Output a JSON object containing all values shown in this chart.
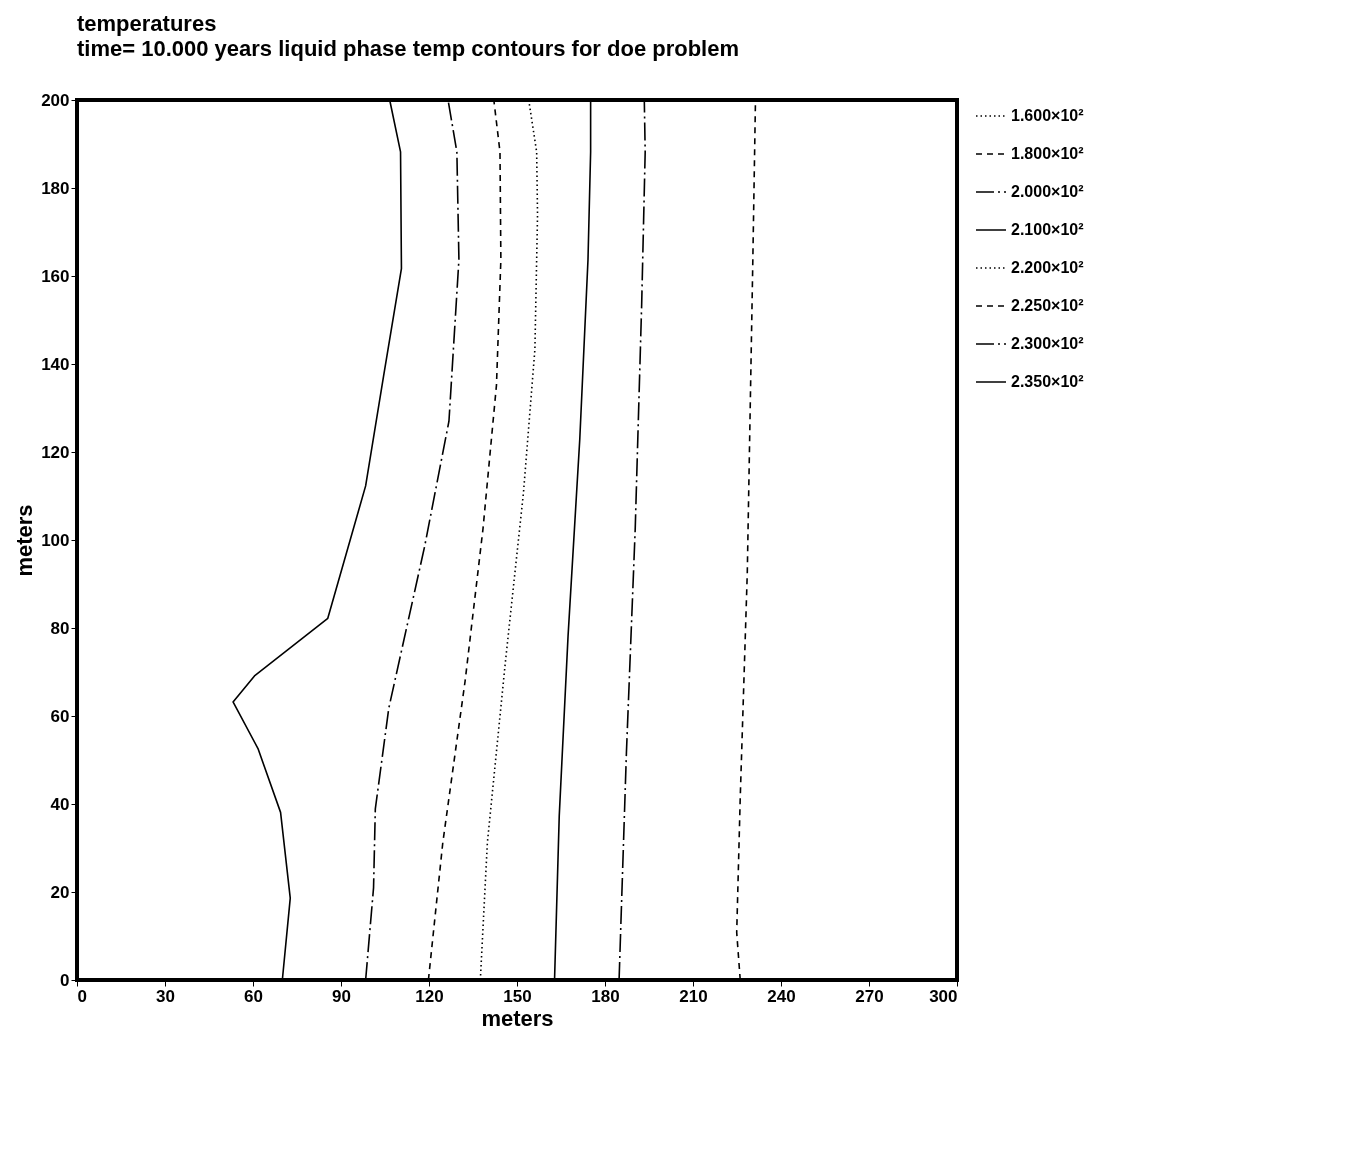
{
  "chart_data": {
    "type": "line",
    "title": "temperatures",
    "subtitle": "time= 10.000 years  liquid phase  temp contours for doe problem",
    "xlabel": "meters",
    "ylabel": "meters",
    "xlim": [
      0,
      300
    ],
    "ylim": [
      0,
      200
    ],
    "xticks": [
      0,
      30,
      60,
      90,
      120,
      150,
      180,
      210,
      240,
      270,
      300
    ],
    "yticks": [
      0,
      20,
      40,
      60,
      80,
      100,
      120,
      140,
      160,
      180,
      200
    ],
    "legend": "right",
    "marker": "none",
    "series": [
      {
        "name": "1.600×10²",
        "color": "#000000",
        "line_style": "dotted"
      },
      {
        "name": "1.800×10²",
        "color": "#000000",
        "line_style": "dashed",
        "x": [
          226.1,
          224.9,
          226.1,
          228.5,
          230.4,
          231.3
        ],
        "values": [
          0,
          10.8,
          41.4,
          92.4,
          163.7,
          200
        ]
      },
      {
        "name": "2.000×10²",
        "color": "#000000",
        "line_style": "dashdot",
        "x": [
          184.8,
          187.3,
          190.3,
          192.5,
          193.7,
          193.4
        ],
        "values": [
          0,
          51.6,
          102.5,
          153.5,
          188.2,
          200
        ]
      },
      {
        "name": "2.100×10²",
        "color": "#000000",
        "line_style": "solid",
        "x": [
          162.8,
          164.4,
          167.4,
          171.4,
          174.2,
          175.1,
          175.1
        ],
        "values": [
          0,
          37.3,
          78.1,
          122.9,
          163.7,
          188.2,
          200
        ]
      },
      {
        "name": "2.200×10²",
        "color": "#000000",
        "line_style": "dotted",
        "x": [
          137.5,
          139.9,
          146,
          152.2,
          156.1,
          157,
          156.7,
          154
        ],
        "values": [
          0,
          31.2,
          72,
          110.7,
          143.3,
          173.9,
          188.2,
          200
        ]
      },
      {
        "name": "2.250×10²",
        "color": "#000000",
        "line_style": "dashed",
        "x": [
          119.8,
          124.7,
          132.3,
          138.4,
          143,
          144.5,
          144.2,
          142.1
        ],
        "values": [
          0,
          31.2,
          67.9,
          102.5,
          135.2,
          163.7,
          188.2,
          200
        ]
      },
      {
        "name": "2.300×10²",
        "color": "#000000",
        "line_style": "dashdot",
        "x": [
          98.4,
          101.1,
          101.7,
          106.3,
          118.5,
          126.8,
          130.2,
          129.5,
          126.5
        ],
        "values": [
          0,
          21,
          38.9,
          61.8,
          98.5,
          127,
          163.7,
          188.2,
          200
        ]
      },
      {
        "name": "2.350×10²",
        "color": "#000000",
        "line_style": "solid",
        "x": [
          70,
          72.7,
          69.4,
          61.7,
          53.2,
          60.5,
          85.5,
          98.4,
          104.5,
          110.6,
          110.3,
          106.6
        ],
        "values": [
          0,
          18.6,
          38.1,
          52.6,
          63.2,
          69.1,
          82.2,
          112.3,
          137.2,
          161.7,
          188.2,
          200
        ]
      }
    ]
  }
}
